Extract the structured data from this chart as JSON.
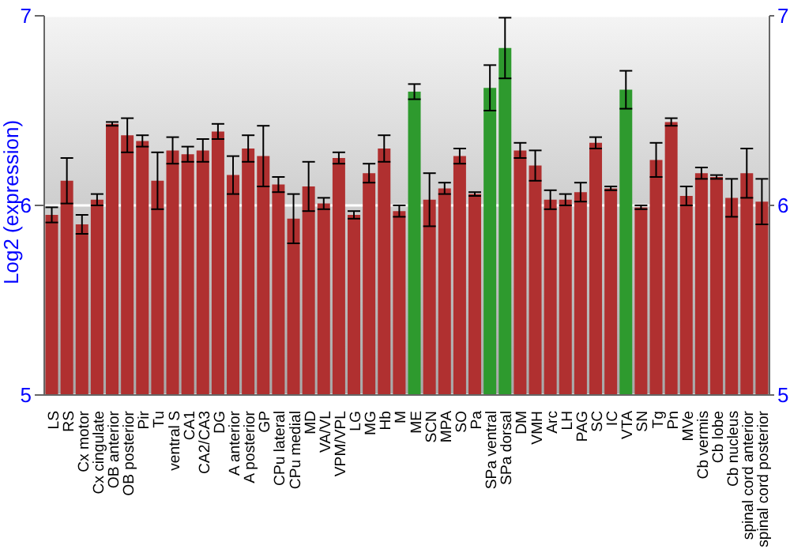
{
  "chart_data": {
    "type": "bar",
    "ylabel": "Log2 (expression)",
    "categories": [
      "LS",
      "RS",
      "Cx motor",
      "Cx cingulate",
      "OB anterior",
      "OB posterior",
      "Pir",
      "Tu",
      "ventral S",
      "CA1",
      "CA2/CA3",
      "DG",
      "A anterior",
      "A posterior",
      "GP",
      "CPu lateral",
      "CPu medial",
      "MD",
      "VA/VL",
      "VPM/VPL",
      "LG",
      "MG",
      "Hb",
      "M",
      "ME",
      "SCN",
      "MPA",
      "SO",
      "Pa",
      "SPa ventral",
      "SPa dorsal",
      "DM",
      "VMH",
      "Arc",
      "LH",
      "PAG",
      "SC",
      "IC",
      "VTA",
      "SN",
      "Tg",
      "Pn",
      "MVe",
      "Cb vermis",
      "Cb lobe",
      "Cb nucleus",
      "spinal cord anterior",
      "spinal cord posterior"
    ],
    "values": [
      5.95,
      6.13,
      5.9,
      6.03,
      6.43,
      6.37,
      6.34,
      6.13,
      6.29,
      6.27,
      6.29,
      6.39,
      6.16,
      6.3,
      6.26,
      6.11,
      5.93,
      6.1,
      6.01,
      6.25,
      5.95,
      6.17,
      6.3,
      5.97,
      6.6,
      6.03,
      6.09,
      6.26,
      6.06,
      6.62,
      6.83,
      6.29,
      6.21,
      6.03,
      6.03,
      6.07,
      6.33,
      6.09,
      6.61,
      5.99,
      6.24,
      6.44,
      6.05,
      6.17,
      6.15,
      6.04,
      6.17,
      6.02
    ],
    "errors": [
      0.04,
      0.12,
      0.05,
      0.03,
      0.01,
      0.09,
      0.03,
      0.15,
      0.07,
      0.04,
      0.06,
      0.04,
      0.1,
      0.07,
      0.16,
      0.04,
      0.13,
      0.13,
      0.03,
      0.03,
      0.02,
      0.05,
      0.07,
      0.03,
      0.04,
      0.14,
      0.03,
      0.04,
      0.01,
      0.12,
      0.16,
      0.04,
      0.08,
      0.05,
      0.03,
      0.05,
      0.03,
      0.01,
      0.1,
      0.01,
      0.09,
      0.02,
      0.05,
      0.03,
      0.01,
      0.1,
      0.13,
      0.12
    ],
    "colors": [
      "#b03030",
      "#b03030",
      "#b03030",
      "#b03030",
      "#b03030",
      "#b03030",
      "#b03030",
      "#b03030",
      "#b03030",
      "#b03030",
      "#b03030",
      "#b03030",
      "#b03030",
      "#b03030",
      "#b03030",
      "#b03030",
      "#b03030",
      "#b03030",
      "#b03030",
      "#b03030",
      "#b03030",
      "#b03030",
      "#b03030",
      "#b03030",
      "#2e9a2e",
      "#b03030",
      "#b03030",
      "#b03030",
      "#b03030",
      "#2e9a2e",
      "#2e9a2e",
      "#b03030",
      "#b03030",
      "#b03030",
      "#b03030",
      "#b03030",
      "#b03030",
      "#b03030",
      "#2e9a2e",
      "#b03030",
      "#b03030",
      "#b03030",
      "#b03030",
      "#b03030",
      "#b03030",
      "#b03030",
      "#b03030",
      "#b03030"
    ],
    "ylim": [
      5,
      7
    ],
    "yticks": [
      5,
      6,
      7
    ],
    "y2lim": [
      5,
      7
    ],
    "y2ticks": [
      5,
      6,
      7
    ],
    "grid": "y"
  }
}
